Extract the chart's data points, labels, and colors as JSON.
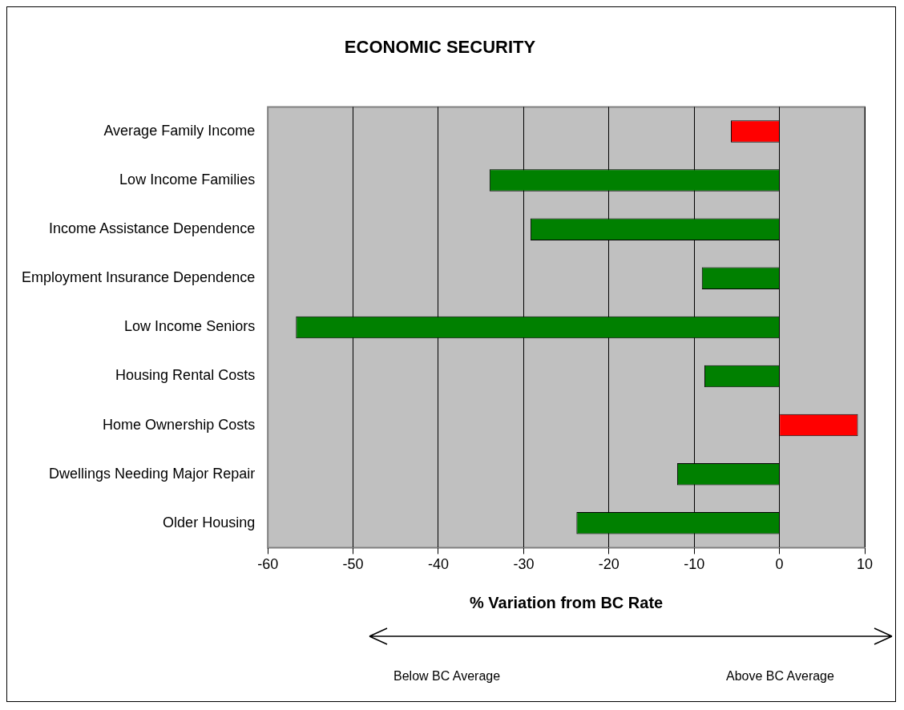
{
  "chart_data": {
    "type": "bar",
    "orientation": "horizontal",
    "title": "ECONOMIC SECURITY",
    "xlabel": "% Variation from BC Rate",
    "categories": [
      "Average Family Income",
      "Low Income Families",
      "Income Assistance Dependence",
      "Employment Insurance Dependence",
      "Low Income Seniors",
      "Housing Rental Costs",
      "Home Ownership Costs",
      "Dwellings Needing Major Repair",
      "Older Housing"
    ],
    "values": [
      -5.7,
      -34,
      -29.2,
      -9.1,
      -56.7,
      -8.8,
      9.2,
      -12,
      -23.8
    ],
    "colors": [
      "#ff0000",
      "#008000",
      "#008000",
      "#008000",
      "#008000",
      "#008000",
      "#ff0000",
      "#008000",
      "#008000"
    ],
    "xlim": [
      -60,
      10
    ],
    "xticks": [
      -60,
      -50,
      -40,
      -30,
      -20,
      -10,
      0,
      10
    ],
    "grid": "x",
    "annotations": [
      "Below BC Average",
      "Above BC Average"
    ]
  }
}
